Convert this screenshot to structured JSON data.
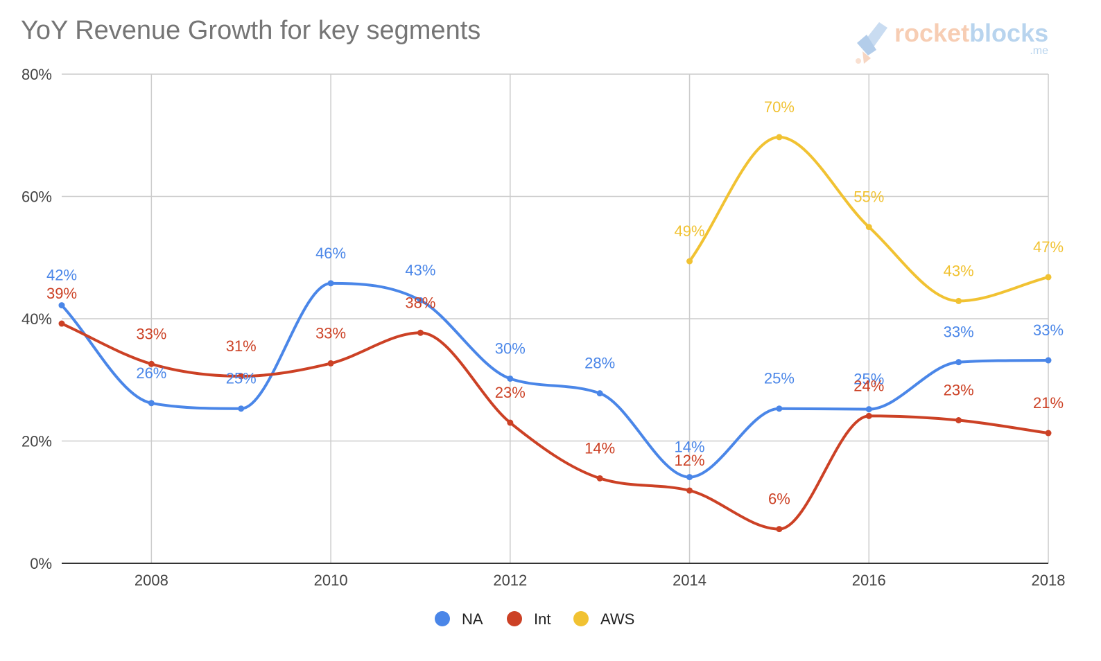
{
  "chart_data": {
    "type": "line",
    "title": "YoY Revenue Growth for key segments",
    "x": [
      2007,
      2008,
      2009,
      2010,
      2011,
      2012,
      2013,
      2014,
      2015,
      2016,
      2017,
      2018
    ],
    "x_tick_labels": [
      "2008",
      "2010",
      "2012",
      "2014",
      "2016",
      "2018"
    ],
    "x_ticks": [
      2008,
      2010,
      2012,
      2014,
      2016,
      2018
    ],
    "xlim": [
      2007,
      2018
    ],
    "y_tick_labels": [
      "0%",
      "20%",
      "40%",
      "60%",
      "80%"
    ],
    "y_ticks": [
      0,
      20,
      40,
      60,
      80
    ],
    "ylim": [
      0,
      80
    ],
    "smooth": true,
    "grid": true,
    "legend_position": "bottom",
    "series": [
      {
        "name": "NA",
        "color": "#4A86E8",
        "values": [
          42.2,
          26.2,
          25.3,
          45.8,
          43.0,
          30.2,
          27.8,
          14.1,
          25.3,
          25.2,
          32.9,
          33.2
        ],
        "labels": [
          "42%",
          "26%",
          "25%",
          "46%",
          "43%",
          "30%",
          "28%",
          "14%",
          "25%",
          "25%",
          "33%",
          "33%"
        ]
      },
      {
        "name": "Int",
        "color": "#CC4125",
        "values": [
          39.2,
          32.6,
          30.6,
          32.7,
          37.7,
          23.0,
          13.9,
          11.9,
          5.6,
          24.1,
          23.4,
          21.3
        ],
        "labels": [
          "39%",
          "33%",
          "31%",
          "33%",
          "38%",
          "23%",
          "14%",
          "12%",
          "6%",
          "24%",
          "23%",
          "21%"
        ]
      },
      {
        "name": "AWS",
        "color": "#F1C232",
        "values": [
          null,
          null,
          null,
          null,
          null,
          null,
          null,
          49.4,
          69.7,
          55.0,
          42.9,
          46.8
        ],
        "labels": [
          null,
          null,
          null,
          null,
          null,
          null,
          null,
          "49%",
          "70%",
          "55%",
          "43%",
          "47%"
        ]
      }
    ]
  },
  "logo": {
    "word1": "rocket",
    "word2": "blocks",
    "suffix": ".me",
    "color1": "#F7CDB3",
    "color2": "#B8D4EE"
  }
}
